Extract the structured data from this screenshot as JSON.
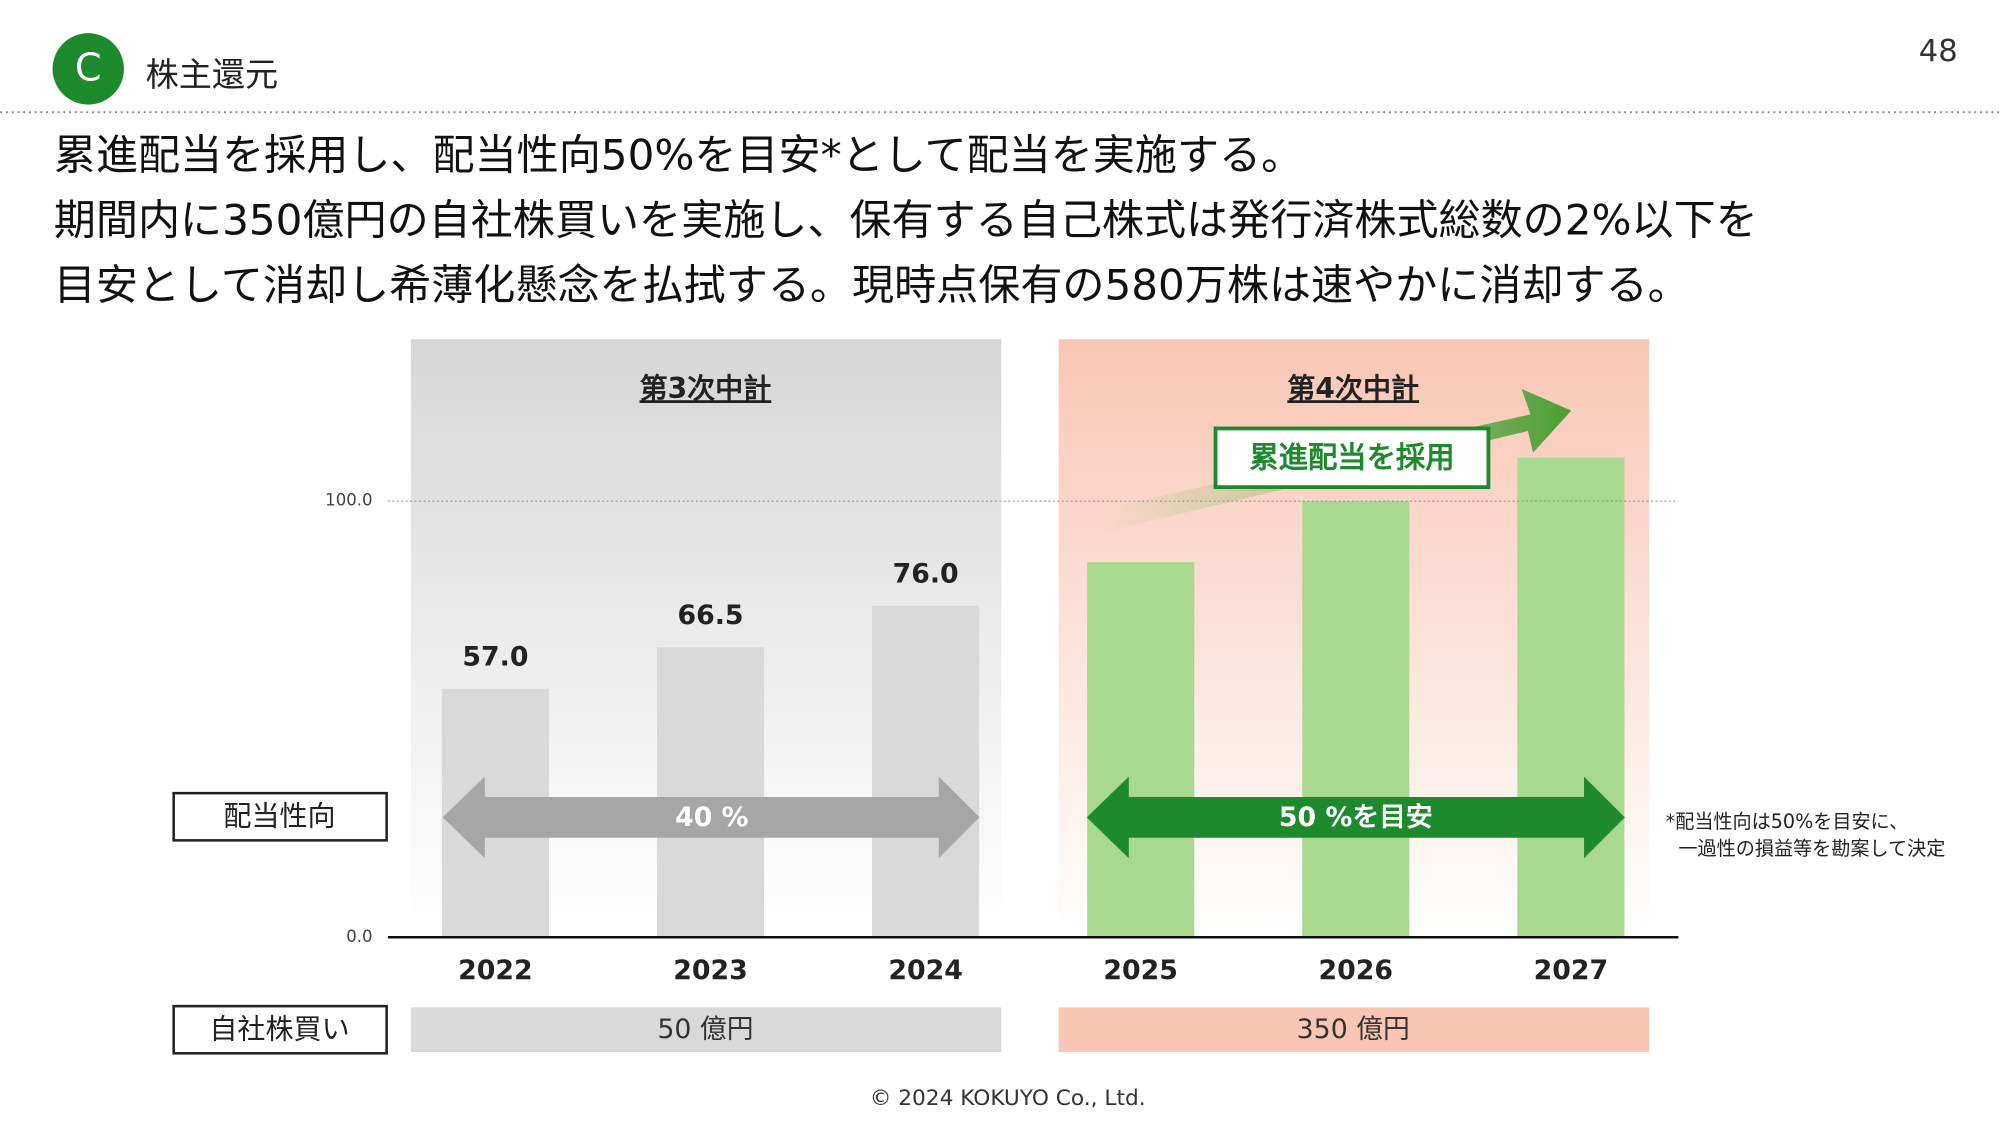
{
  "header": {
    "badge": "C",
    "title": "株主還元",
    "page": "48"
  },
  "text": [
    "累進配当を採用し、配当性向50%を目安*として配当を実施する。",
    "期間内に350億円の自社株買いを実施し、保有する自己株式は発行済株式総数の2%以下を",
    "目安として消却し希薄化懸念を払拭する。現時点保有の580万株は速やかに消却する。"
  ],
  "chart_data": {
    "type": "bar",
    "categories": [
      "2022",
      "2023",
      "2024",
      "2025",
      "2026",
      "2027"
    ],
    "values": [
      57.0,
      66.5,
      76.0,
      86,
      100,
      110
    ],
    "value_labels": [
      "57.0",
      "66.5",
      "76.0",
      null,
      null,
      null
    ],
    "colors": [
      "#d9d9d9",
      "#d9d9d9",
      "#d9d9d9",
      "#a9d98f",
      "#a9d98f",
      "#a9d98f"
    ],
    "ylim": [
      0,
      137
    ],
    "yticks": [
      {
        "value": 0,
        "label": "0.0"
      },
      {
        "value": 100,
        "label": "100.0"
      }
    ],
    "grid": true
  },
  "row_labels": {
    "payout": "配当性向",
    "buyback": "自社株買い"
  },
  "periods": [
    {
      "name": "第3次中計",
      "payout": "40 %",
      "buyback": "50 億円"
    },
    {
      "name": "第4次中計",
      "payout": "50 %を目安",
      "buyback": "350 億円",
      "policy": "累進配当を採用"
    }
  ],
  "footnote": [
    "*配当性向は50%を目安に、",
    "一過性の損益等を勘案して決定"
  ],
  "footer": "© 2024 KOKUYO Co., Ltd."
}
